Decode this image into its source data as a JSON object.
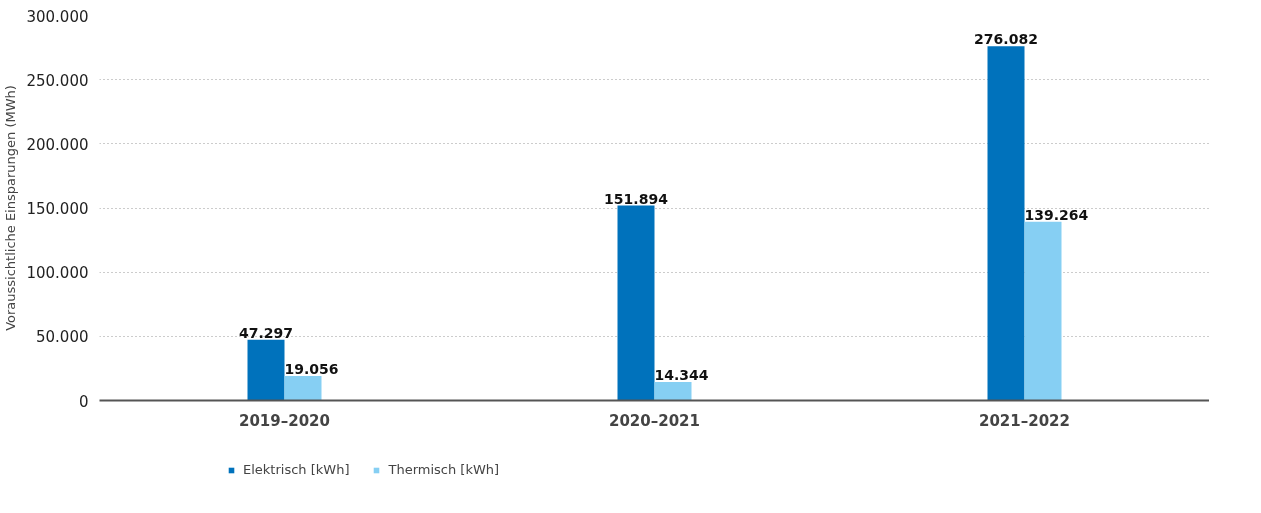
{
  "chart_data": {
    "type": "bar",
    "ylabel": "Voraussichtliche Einsparungen (MWh)",
    "categories": [
      "2019–2020",
      "2020–2021",
      "2021–2022"
    ],
    "series": [
      {
        "name": "Elektrisch [kWh]",
        "color": "#0072bc",
        "values": [
          47297,
          151894,
          276082
        ],
        "value_labels": [
          "47.297",
          "151.894",
          "276.082"
        ]
      },
      {
        "name": "Thermisch [kWh]",
        "color": "#86cff3",
        "values": [
          19056,
          14344,
          139264
        ],
        "value_labels": [
          "19.056",
          "14.344",
          "139.264"
        ]
      }
    ],
    "ylim": [
      0,
      300000
    ],
    "yticks": [
      {
        "value": 0,
        "label": "0"
      },
      {
        "value": 50000,
        "label": "50.000"
      },
      {
        "value": 100000,
        "label": "100.000"
      },
      {
        "value": 150000,
        "label": "150.000"
      },
      {
        "value": 200000,
        "label": "200.000"
      },
      {
        "value": 250000,
        "label": "250.000"
      },
      {
        "value": 300000,
        "label": "300.000"
      }
    ],
    "grid": "y",
    "legend": "bottom left"
  }
}
